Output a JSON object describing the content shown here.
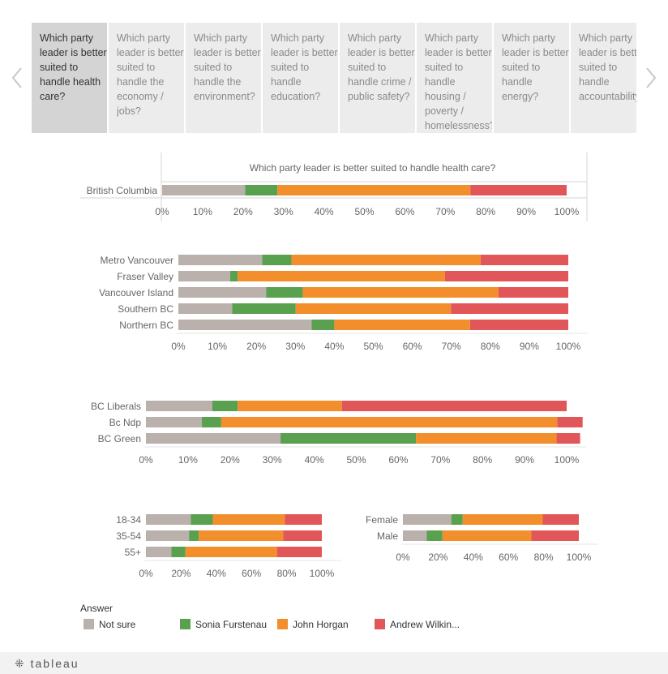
{
  "tabs": [
    {
      "label": "Which party leader is better suited to handle health care?"
    },
    {
      "label": "Which party leader is better suited to handle the economy / jobs?"
    },
    {
      "label": "Which party leader is better suited to handle the environment?"
    },
    {
      "label": "Which party leader is better suited to handle education?"
    },
    {
      "label": "Which party leader is better suited to handle crime / public safety?"
    },
    {
      "label": "Which party leader is better suited to handle housing / poverty / homelessness?"
    },
    {
      "label": "Which party leader is better suited to handle energy?"
    },
    {
      "label": "Which party leader is better suited to handle accountability?"
    }
  ],
  "active_tab": 0,
  "colors": {
    "not_sure": "#bab0ac",
    "furstenau": "#59a14f",
    "horgan": "#f28e2b",
    "wilkinson": "#e15759"
  },
  "legend": {
    "title": "Answer",
    "items": [
      {
        "label": "Not sure",
        "key": "not_sure"
      },
      {
        "label": "Sonia Furstenau",
        "key": "furstenau"
      },
      {
        "label": "John Horgan",
        "key": "horgan"
      },
      {
        "label": "Andrew Wilkin...",
        "key": "wilkinson"
      }
    ]
  },
  "footer": {
    "logo": "tableau"
  },
  "chart_data": [
    {
      "type": "bar",
      "orientation": "horizontal",
      "stacked": true,
      "title": "Which party leader is better suited to handle health care?",
      "categories": [
        "British Columbia"
      ],
      "series": [
        {
          "name": "Not sure",
          "values": [
            20.5
          ]
        },
        {
          "name": "Sonia Furstenau",
          "values": [
            8
          ]
        },
        {
          "name": "John Horgan",
          "values": [
            47.7
          ]
        },
        {
          "name": "Andrew Wilkin...",
          "values": [
            23.8
          ]
        }
      ],
      "xlim": [
        0,
        100
      ],
      "ticks": [
        "0%",
        "10%",
        "20%",
        "30%",
        "40%",
        "50%",
        "60%",
        "70%",
        "80%",
        "90%",
        "100%"
      ]
    },
    {
      "type": "bar",
      "orientation": "horizontal",
      "stacked": true,
      "categories": [
        "Metro Vancouver",
        "Fraser Valley",
        "Vancouver Island",
        "Southern BC",
        "Northern BC"
      ],
      "series": [
        {
          "name": "Not sure",
          "values": [
            21.5,
            13.3,
            22.5,
            13.8,
            34.2
          ]
        },
        {
          "name": "Sonia Furstenau",
          "values": [
            7.5,
            1.9,
            9.4,
            16.3,
            5.8
          ]
        },
        {
          "name": "John Horgan",
          "values": [
            48.5,
            53.2,
            50.2,
            39.8,
            34.8
          ]
        },
        {
          "name": "Andrew Wilkin...",
          "values": [
            22.5,
            31.6,
            17.9,
            30.1,
            25.2
          ]
        }
      ],
      "xlim": [
        0,
        100
      ],
      "ticks": [
        "0%",
        "10%",
        "20%",
        "30%",
        "40%",
        "50%",
        "60%",
        "70%",
        "80%",
        "90%",
        "100%"
      ]
    },
    {
      "type": "bar",
      "orientation": "horizontal",
      "stacked": true,
      "categories": [
        "BC Liberals",
        "Bc Ndp",
        "BC Green"
      ],
      "series": [
        {
          "name": "Not sure",
          "values": [
            15.8,
            13.3,
            32
          ]
        },
        {
          "name": "Sonia Furstenau",
          "values": [
            6,
            4.6,
            32.2
          ]
        },
        {
          "name": "John Horgan",
          "values": [
            24.8,
            79.9,
            33.4
          ]
        },
        {
          "name": "Andrew Wilkin...",
          "values": [
            53.4,
            6.0,
            5.6
          ]
        }
      ],
      "xlim": [
        0,
        100
      ],
      "ticks": [
        "0%",
        "10%",
        "20%",
        "30%",
        "40%",
        "50%",
        "60%",
        "70%",
        "80%",
        "90%",
        "100%"
      ]
    },
    {
      "type": "bar",
      "orientation": "horizontal",
      "stacked": true,
      "categories": [
        "18-34",
        "35-54",
        "55+"
      ],
      "series": [
        {
          "name": "Not sure",
          "values": [
            25.5,
            24.5,
            14.5
          ]
        },
        {
          "name": "Sonia Furstenau",
          "values": [
            12.5,
            5.5,
            8
          ]
        },
        {
          "name": "John Horgan",
          "values": [
            41,
            48,
            52
          ]
        },
        {
          "name": "Andrew Wilkin...",
          "values": [
            21,
            22,
            25.5
          ]
        }
      ],
      "xlim": [
        0,
        100
      ],
      "ticks": [
        "0%",
        "20%",
        "40%",
        "60%",
        "80%",
        "100%"
      ]
    },
    {
      "type": "bar",
      "orientation": "horizontal",
      "stacked": true,
      "categories": [
        "Female",
        "Male"
      ],
      "series": [
        {
          "name": "Not sure",
          "values": [
            27.5,
            13.5
          ]
        },
        {
          "name": "Sonia Furstenau",
          "values": [
            6.5,
            9
          ]
        },
        {
          "name": "John Horgan",
          "values": [
            45.5,
            50.5
          ]
        },
        {
          "name": "Andrew Wilkin...",
          "values": [
            20.5,
            27
          ]
        }
      ],
      "xlim": [
        0,
        100
      ],
      "ticks": [
        "0%",
        "20%",
        "40%",
        "60%",
        "80%",
        "100%"
      ]
    }
  ]
}
